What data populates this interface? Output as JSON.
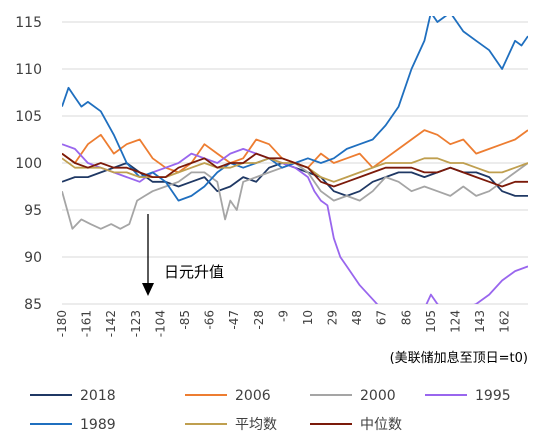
{
  "chart_data": {
    "type": "line",
    "x_axis_title": "(美联储加息至顶日=t0)",
    "annotation": "日元升值",
    "ylim": [
      85,
      115
    ],
    "xlim": [
      -180,
      180
    ],
    "yticks": [
      85,
      90,
      95,
      100,
      105,
      110,
      115
    ],
    "xticks": [
      -180,
      -161,
      -142,
      -123,
      -104,
      -85,
      -66,
      -47,
      -28,
      -9,
      10,
      29,
      48,
      67,
      86,
      105,
      124,
      143,
      162
    ],
    "grid": "horizontal",
    "legend_position": "bottom",
    "colors": {
      "2018": "#1f3864",
      "2006": "#ed7d31",
      "2000": "#a5a5a5",
      "1995": "#9966ee",
      "1989": "#1f6fbf",
      "平均数": "#bf9f4f",
      "中位数": "#7b1a0a",
      "arrow": "#000000"
    },
    "series": [
      {
        "name": "2018",
        "x": [
          -180,
          -170,
          -160,
          -150,
          -140,
          -130,
          -120,
          -110,
          -100,
          -90,
          -80,
          -70,
          -60,
          -50,
          -40,
          -30,
          -20,
          -10,
          0,
          10,
          20,
          30,
          40,
          50,
          60,
          70,
          80,
          90,
          100,
          110,
          120,
          130,
          140,
          150,
          160,
          170,
          180
        ],
        "y": [
          98,
          98.5,
          98.5,
          99,
          99.5,
          100,
          99,
          98,
          98,
          97.5,
          98,
          98.5,
          97,
          97.5,
          98.5,
          98,
          99.5,
          100,
          99.5,
          99,
          98.5,
          97,
          96.5,
          97,
          98,
          98.5,
          99,
          99,
          98.5,
          99,
          99.5,
          99,
          99,
          98.5,
          97,
          96.5,
          96.5
        ]
      },
      {
        "name": "2006",
        "x": [
          -180,
          -170,
          -160,
          -150,
          -140,
          -130,
          -120,
          -110,
          -100,
          -90,
          -80,
          -70,
          -60,
          -50,
          -40,
          -30,
          -20,
          -10,
          0,
          10,
          20,
          30,
          40,
          50,
          60,
          70,
          80,
          90,
          100,
          110,
          120,
          130,
          140,
          150,
          160,
          170,
          180
        ],
        "y": [
          101,
          100,
          102,
          103,
          101,
          102,
          102.5,
          100.5,
          99.5,
          99,
          100,
          102,
          101,
          100,
          100.5,
          102.5,
          102,
          100.5,
          100,
          99.5,
          101,
          100,
          100.5,
          101,
          99.5,
          100.5,
          101.5,
          102.5,
          103.5,
          103,
          102,
          102.5,
          101,
          101.5,
          102,
          102.5,
          103.5
        ]
      },
      {
        "name": "2000",
        "x": [
          -180,
          -176,
          -172,
          -165,
          -158,
          -150,
          -142,
          -135,
          -128,
          -122,
          -116,
          -110,
          -100,
          -90,
          -80,
          -70,
          -60,
          -54,
          -50,
          -45,
          -40,
          -30,
          -20,
          -10,
          0,
          10,
          20,
          30,
          40,
          50,
          60,
          70,
          80,
          90,
          100,
          110,
          120,
          130,
          140,
          150,
          160,
          170,
          180
        ],
        "y": [
          97,
          95,
          93,
          94,
          93.5,
          93,
          93.5,
          93,
          93.5,
          96,
          96.5,
          97,
          97.5,
          98,
          99,
          99,
          98,
          94,
          96,
          95,
          98,
          98.5,
          99,
          99.5,
          100,
          99,
          97,
          96,
          96.5,
          96,
          97,
          98.5,
          98,
          97,
          97.5,
          97,
          96.5,
          97.5,
          96.5,
          97,
          98,
          99,
          100
        ]
      },
      {
        "name": "1995",
        "x": [
          -180,
          -170,
          -160,
          -150,
          -140,
          -130,
          -120,
          -110,
          -100,
          -90,
          -80,
          -70,
          -60,
          -50,
          -40,
          -30,
          -20,
          -10,
          0,
          5,
          10,
          15,
          20,
          25,
          30,
          35,
          40,
          50,
          60,
          70,
          80,
          90,
          100,
          105,
          110,
          115,
          120,
          130,
          140,
          150,
          160,
          170,
          180
        ],
        "y": [
          102,
          101.5,
          100,
          99.5,
          99,
          98.5,
          98,
          99,
          99.5,
          100,
          101,
          100.5,
          100,
          101,
          101.5,
          101,
          100.5,
          100,
          99.5,
          99,
          98.5,
          97,
          96,
          95.5,
          92,
          90,
          89,
          87,
          85.5,
          84,
          83.5,
          84,
          84.5,
          86,
          85,
          84.5,
          84,
          84.5,
          85,
          86,
          87.5,
          88.5,
          89
        ]
      },
      {
        "name": "1989",
        "x": [
          -180,
          -175,
          -170,
          -165,
          -160,
          -150,
          -140,
          -130,
          -120,
          -110,
          -100,
          -90,
          -80,
          -70,
          -60,
          -50,
          -40,
          -30,
          -20,
          -10,
          0,
          10,
          20,
          30,
          40,
          50,
          60,
          70,
          80,
          90,
          100,
          105,
          110,
          120,
          130,
          140,
          150,
          160,
          165,
          170,
          175,
          180
        ],
        "y": [
          106,
          108,
          107,
          106,
          106.5,
          105.5,
          103,
          100,
          98.5,
          99,
          98,
          96,
          96.5,
          97.5,
          99,
          100,
          99.5,
          100,
          100.5,
          99.5,
          100,
          100.5,
          100,
          100.5,
          101.5,
          102,
          102.5,
          104,
          106,
          110,
          113,
          116,
          115,
          116,
          114,
          113,
          112,
          110,
          111.5,
          113,
          112.5,
          113.5
        ]
      },
      {
        "name": "平均数",
        "x": [
          -180,
          -170,
          -160,
          -150,
          -140,
          -130,
          -120,
          -110,
          -100,
          -90,
          -80,
          -70,
          -60,
          -50,
          -40,
          -30,
          -20,
          -10,
          0,
          10,
          20,
          30,
          40,
          50,
          60,
          70,
          80,
          90,
          100,
          110,
          120,
          130,
          140,
          150,
          160,
          170,
          180
        ],
        "y": [
          100.5,
          99.5,
          99.5,
          99.5,
          99,
          99,
          98.5,
          98.5,
          98.5,
          99,
          99.5,
          100,
          99.5,
          99.5,
          100,
          100,
          100.5,
          100,
          100,
          99.5,
          98.5,
          98,
          98.5,
          99,
          99.5,
          100,
          100,
          100,
          100.5,
          100.5,
          100,
          100,
          99.5,
          99,
          99,
          99.5,
          100
        ]
      },
      {
        "name": "中位数",
        "x": [
          -180,
          -170,
          -160,
          -150,
          -140,
          -130,
          -120,
          -110,
          -100,
          -90,
          -80,
          -70,
          -60,
          -50,
          -40,
          -30,
          -20,
          -10,
          0,
          10,
          20,
          30,
          40,
          50,
          60,
          70,
          80,
          90,
          100,
          110,
          120,
          130,
          140,
          150,
          160,
          170,
          180
        ],
        "y": [
          101,
          100,
          99.5,
          100,
          99.5,
          99.5,
          99,
          98.5,
          98.5,
          99.5,
          100,
          100.5,
          99.5,
          100,
          100,
          101,
          100.5,
          100.5,
          100,
          99.5,
          98,
          97.5,
          98,
          98.5,
          99,
          99.5,
          99.5,
          99.5,
          99,
          99,
          99.5,
          99,
          98.5,
          98,
          97.5,
          98,
          98
        ]
      }
    ],
    "legend": {
      "rows": [
        [
          "2018",
          "2006",
          "2000",
          "1995"
        ],
        [
          "1989",
          "平均数",
          "中位数"
        ]
      ]
    }
  }
}
